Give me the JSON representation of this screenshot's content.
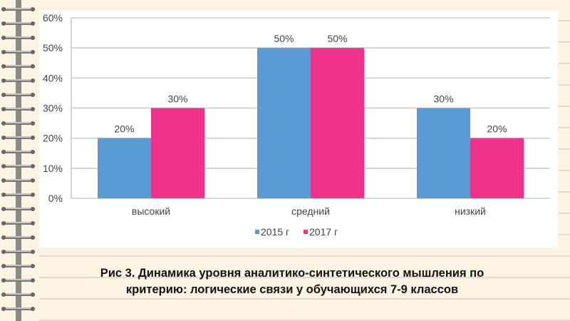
{
  "chart_data": {
    "type": "bar",
    "categories": [
      "высокий",
      "средний",
      "низкий"
    ],
    "series": [
      {
        "name": "2015 г",
        "values": [
          20,
          50,
          30
        ],
        "labels": [
          "20%",
          "50%",
          "30%"
        ],
        "color": "#5b9bd5"
      },
      {
        "name": "2017 г",
        "values": [
          30,
          50,
          20
        ],
        "labels": [
          "30%",
          "50%",
          "20%"
        ],
        "color": "#f0338a"
      }
    ],
    "ylim": [
      0,
      60
    ],
    "yticks": [
      0,
      10,
      20,
      30,
      40,
      50,
      60
    ],
    "ytick_labels": [
      "0%",
      "10%",
      "20%",
      "30%",
      "40%",
      "50%",
      "60%"
    ],
    "grid": true,
    "legend": "bottom",
    "title": "",
    "xlabel": "",
    "ylabel": ""
  },
  "caption": {
    "line1": "Рис  3. Динамика уровня аналитико-синтетического мышления по",
    "line2": "критерию: логические связи у обучающихся 7-9 классов"
  }
}
